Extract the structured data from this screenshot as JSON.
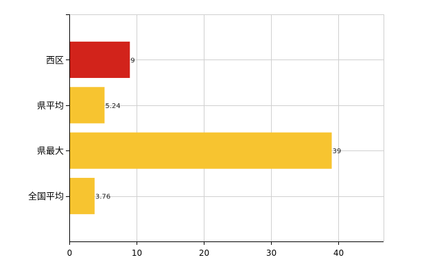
{
  "chart_data": {
    "type": "bar",
    "orientation": "horizontal",
    "categories": [
      "西区",
      "県平均",
      "県最大",
      "全国平均"
    ],
    "values": [
      9,
      5.24,
      39,
      3.76
    ],
    "value_labels": [
      "9",
      "5.24",
      "39",
      "3.76"
    ],
    "xlim": [
      0,
      46.7
    ],
    "xticks": [
      0,
      10,
      20,
      30,
      40
    ],
    "xtick_labels": [
      "0",
      "10",
      "20",
      "30",
      "40"
    ],
    "grid": true,
    "legend": "none",
    "colors": {
      "highlight": "#D2231B",
      "default": "#F7C430",
      "grid": "#D0D0D0",
      "axis": "#000000"
    },
    "bar_colors": [
      "highlight",
      "default",
      "default",
      "default"
    ]
  }
}
